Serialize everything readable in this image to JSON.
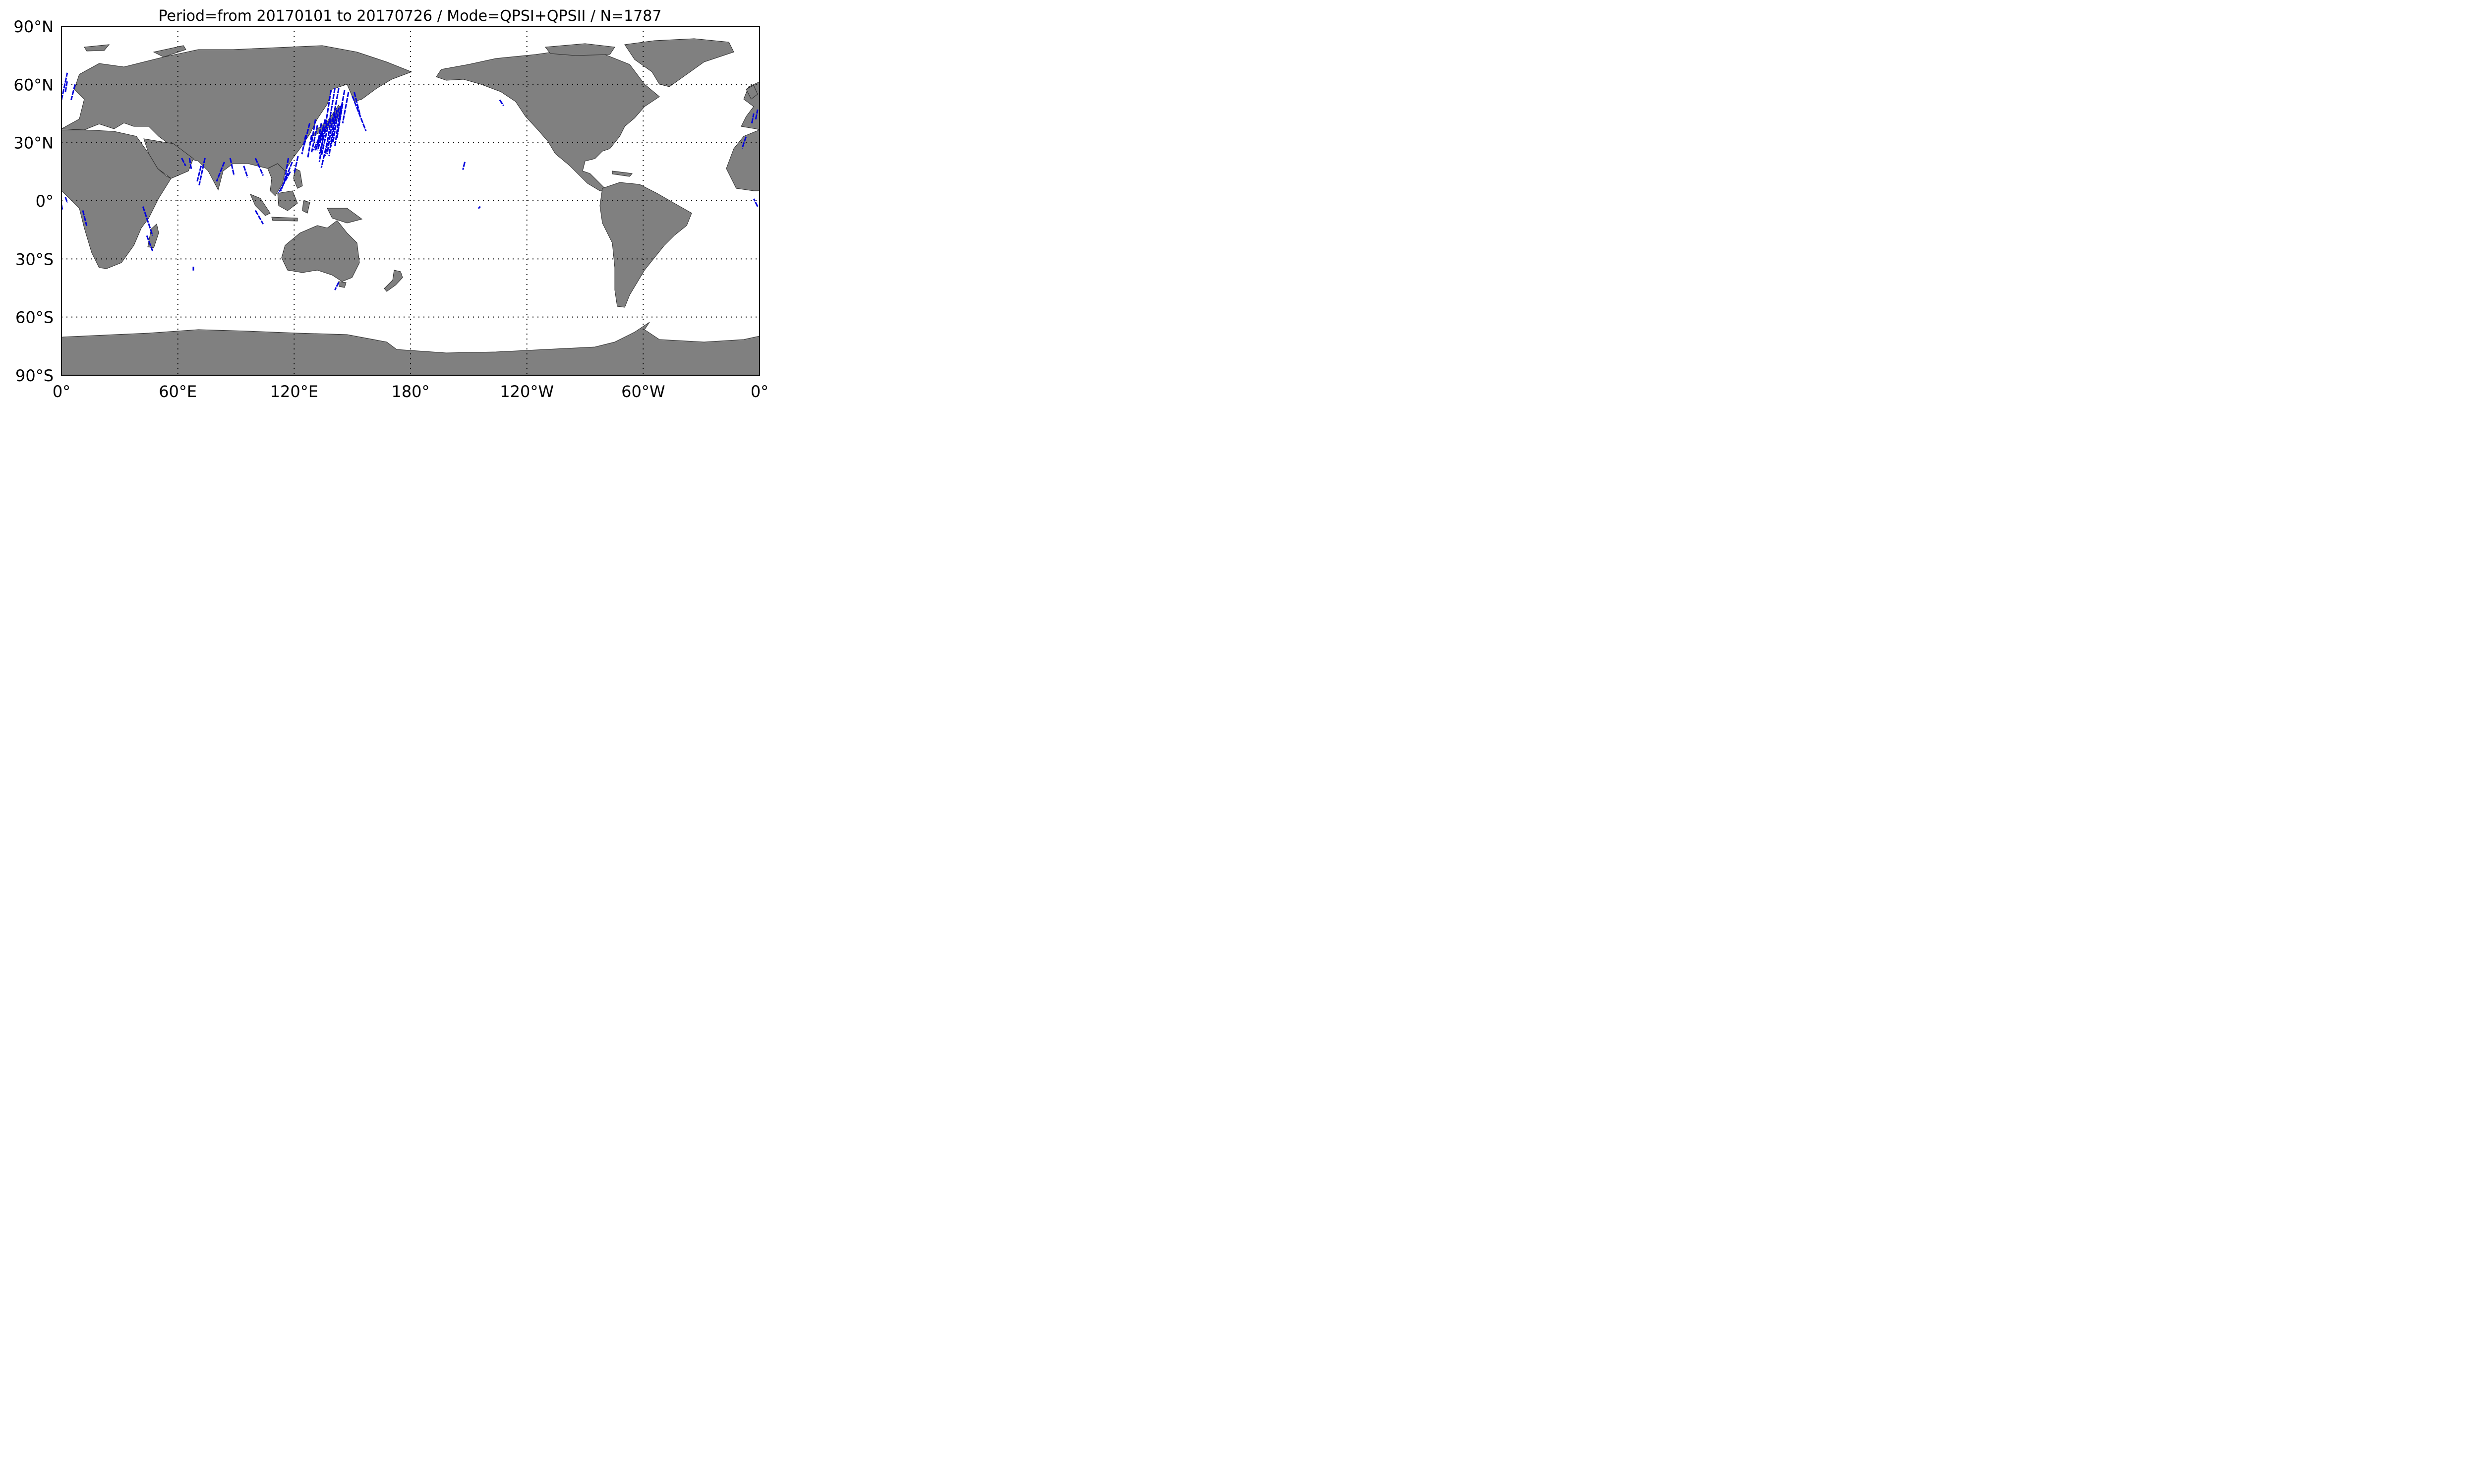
{
  "title": "Period=from 20170101 to 20170726 / Mode=QPSI+QPSII  / N=1787",
  "map": {
    "projection": "equirectangular (Plate Carrée), centered on 180°",
    "lon_range": [
      0,
      360
    ],
    "lat_range": [
      -90,
      90
    ],
    "grid": "dotted, every 60° longitude and 30° latitude",
    "land_color": "#808080",
    "ocean_color": "#ffffff",
    "track_color": "#0000dd",
    "x_ticks": [
      {
        "lon": 0,
        "label": "0°"
      },
      {
        "lon": 60,
        "label": "60°E"
      },
      {
        "lon": 120,
        "label": "120°E"
      },
      {
        "lon": 180,
        "label": "180°"
      },
      {
        "lon": 240,
        "label": "120°W"
      },
      {
        "lon": 300,
        "label": "60°W"
      },
      {
        "lon": 360,
        "label": "0°"
      }
    ],
    "y_ticks": [
      {
        "lat": 90,
        "label": "90°N"
      },
      {
        "lat": 60,
        "label": "60°N"
      },
      {
        "lat": 30,
        "label": "30°N"
      },
      {
        "lat": 0,
        "label": "0°"
      },
      {
        "lat": -30,
        "label": "30°S"
      },
      {
        "lat": -60,
        "label": "60°S"
      },
      {
        "lat": -90,
        "label": "90°S"
      }
    ],
    "tracks": [
      [
        [
          134,
          35
        ],
        [
          130,
          26
        ]
      ],
      [
        [
          135,
          37
        ],
        [
          131,
          26
        ]
      ],
      [
        [
          136,
          38
        ],
        [
          132,
          26
        ]
      ],
      [
        [
          137,
          40
        ],
        [
          133,
          24
        ]
      ],
      [
        [
          138,
          41
        ],
        [
          134,
          23
        ]
      ],
      [
        [
          139,
          42
        ],
        [
          136,
          23
        ]
      ],
      [
        [
          140,
          43
        ],
        [
          137,
          24
        ]
      ],
      [
        [
          141,
          45
        ],
        [
          138,
          23
        ]
      ],
      [
        [
          142,
          47
        ],
        [
          139,
          28
        ]
      ],
      [
        [
          143,
          48
        ],
        [
          140,
          30
        ]
      ],
      [
        [
          144,
          49
        ],
        [
          141,
          28
        ]
      ],
      [
        [
          145,
          50
        ],
        [
          142,
          32
        ]
      ],
      [
        [
          139,
          57
        ],
        [
          136,
          38
        ]
      ],
      [
        [
          141,
          58
        ],
        [
          138,
          40
        ]
      ],
      [
        [
          143,
          58
        ],
        [
          140,
          42
        ]
      ],
      [
        [
          146,
          57
        ],
        [
          143,
          41
        ]
      ],
      [
        [
          148,
          56
        ],
        [
          145,
          40
        ]
      ],
      [
        [
          150,
          54
        ],
        [
          157,
          36
        ]
      ],
      [
        [
          151,
          56
        ],
        [
          154,
          44
        ]
      ],
      [
        [
          134,
          40
        ],
        [
          132,
          28
        ]
      ],
      [
        [
          136,
          42
        ],
        [
          133,
          30
        ]
      ],
      [
        [
          131,
          42
        ],
        [
          129,
          30
        ]
      ],
      [
        [
          132,
          39
        ],
        [
          129,
          25
        ]
      ],
      [
        [
          137,
          30
        ],
        [
          134,
          17
        ]
      ],
      [
        [
          135,
          33
        ],
        [
          133,
          20
        ]
      ],
      [
        [
          128,
          40
        ],
        [
          125,
          28
        ]
      ],
      [
        [
          126,
          34
        ],
        [
          124,
          24
        ]
      ],
      [
        [
          129,
          34
        ],
        [
          127,
          22
        ]
      ],
      [
        [
          119,
          20
        ],
        [
          113,
          5
        ]
      ],
      [
        [
          117,
          22
        ],
        [
          115,
          10
        ]
      ],
      [
        [
          122,
          23
        ],
        [
          120,
          14
        ]
      ],
      [
        [
          118,
          15
        ],
        [
          112,
          4
        ]
      ],
      [
        [
          100,
          22
        ],
        [
          104,
          13
        ]
      ],
      [
        [
          94,
          18
        ],
        [
          96,
          12
        ]
      ],
      [
        [
          87,
          22
        ],
        [
          89,
          13
        ]
      ],
      [
        [
          84,
          20
        ],
        [
          80,
          10
        ]
      ],
      [
        [
          74,
          22
        ],
        [
          71,
          8
        ]
      ],
      [
        [
          72,
          18
        ],
        [
          70,
          10
        ]
      ],
      [
        [
          66,
          22
        ],
        [
          67,
          16
        ]
      ],
      [
        [
          62,
          22
        ],
        [
          64,
          18
        ]
      ],
      [
        [
          100,
          -5
        ],
        [
          104,
          -12
        ]
      ],
      [
        [
          42,
          -3
        ],
        [
          47,
          -18
        ]
      ],
      [
        [
          44,
          -18
        ],
        [
          47,
          -26
        ]
      ],
      [
        [
          11,
          -5
        ],
        [
          13,
          -13
        ]
      ],
      [
        [
          2,
          2
        ],
        [
          3,
          -1
        ]
      ],
      [
        [
          0,
          -2
        ],
        [
          0.5,
          -5
        ]
      ],
      [
        [
          0,
          52
        ],
        [
          3,
          66
        ]
      ],
      [
        [
          2,
          56
        ],
        [
          3,
          62
        ]
      ],
      [
        [
          7,
          60
        ],
        [
          5,
          52
        ]
      ],
      [
        [
          353,
          33
        ],
        [
          351,
          27
        ]
      ],
      [
        [
          356,
          40
        ],
        [
          357,
          45
        ]
      ],
      [
        [
          358,
          42
        ],
        [
          359,
          47
        ]
      ],
      [
        [
          359,
          -3
        ],
        [
          357,
          1
        ]
      ],
      [
        [
          362,
          -4
        ],
        [
          361,
          2
        ]
      ],
      [
        [
          208,
          20
        ],
        [
          207,
          16
        ]
      ],
      [
        [
          216,
          -3
        ],
        [
          215,
          -4
        ]
      ],
      [
        [
          226,
          52
        ],
        [
          228,
          49
        ]
      ],
      [
        [
          68,
          -34
        ],
        [
          68,
          -36
        ]
      ],
      [
        [
          143,
          -42
        ],
        [
          141,
          -46
        ]
      ]
    ]
  }
}
